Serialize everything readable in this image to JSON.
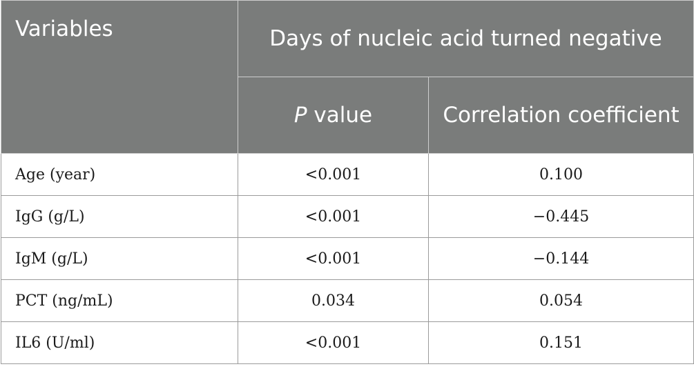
{
  "table": {
    "header": {
      "variables": "Variables",
      "group": "Days of nucleic acid turned negative",
      "p_italic": "P",
      "p_rest": " value",
      "corr": "Correlation coefficient"
    },
    "rows": [
      {
        "variable": "Age (year)",
        "p_value": "<0.001",
        "corr": "0.100"
      },
      {
        "variable": "IgG (g/L)",
        "p_value": "<0.001",
        "corr": "−0.445"
      },
      {
        "variable": "IgM (g/L)",
        "p_value": "<0.001",
        "corr": "−0.144"
      },
      {
        "variable": "PCT (ng/mL)",
        "p_value": "0.034",
        "corr": "0.054"
      },
      {
        "variable": "IL6 (U/ml)",
        "p_value": "<0.001",
        "corr": "0.151"
      }
    ]
  }
}
